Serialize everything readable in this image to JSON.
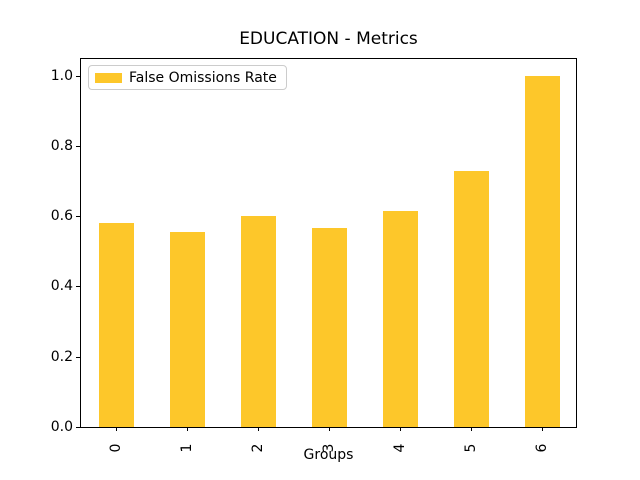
{
  "title": "EDUCATION - Metrics",
  "legend": {
    "label": "False Omissions Rate",
    "swatch_color": "#FDC72A"
  },
  "chart_data": {
    "type": "bar",
    "title": "EDUCATION - Metrics",
    "xlabel": "Groups",
    "ylabel": "",
    "categories": [
      "0",
      "1",
      "2",
      "3",
      "4",
      "5",
      "6"
    ],
    "series": [
      {
        "name": "False Omissions Rate",
        "values": [
          0.58,
          0.555,
          0.6,
          0.565,
          0.615,
          0.73,
          1.0
        ]
      }
    ],
    "bar_color": "#FDC72A",
    "ylim": [
      0,
      1.05
    ],
    "yticks": [
      0.0,
      0.2,
      0.4,
      0.6,
      0.8,
      1.0
    ],
    "xtick_rotation": 90,
    "grid": false,
    "legend_position": "upper left"
  }
}
